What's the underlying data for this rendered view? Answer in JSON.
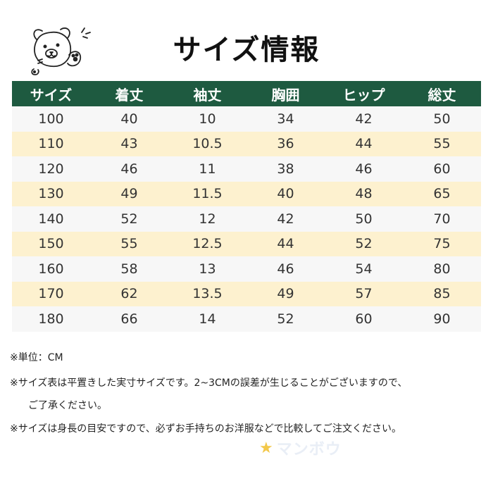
{
  "page": {
    "title": "サイズ情報"
  },
  "table": {
    "headers": [
      "サイズ",
      "着丈",
      "袖丈",
      "胸囲",
      "ヒップ",
      "総丈"
    ],
    "rows": [
      [
        "100",
        "40",
        "10",
        "34",
        "42",
        "50"
      ],
      [
        "110",
        "43",
        "10.5",
        "36",
        "44",
        "55"
      ],
      [
        "120",
        "46",
        "11",
        "38",
        "46",
        "60"
      ],
      [
        "130",
        "49",
        "11.5",
        "40",
        "48",
        "65"
      ],
      [
        "140",
        "52",
        "12",
        "42",
        "50",
        "70"
      ],
      [
        "150",
        "55",
        "12.5",
        "44",
        "52",
        "75"
      ],
      [
        "160",
        "58",
        "13",
        "46",
        "54",
        "80"
      ],
      [
        "170",
        "62",
        "13.5",
        "49",
        "57",
        "85"
      ],
      [
        "180",
        "66",
        "14",
        "52",
        "60",
        "90"
      ]
    ]
  },
  "notes": [
    "※単位：CM",
    "※サイズ表は平置きした実寸サイズです。2~3CMの誤差が生じることがございますので、",
    "ご了承ください。",
    "※サイズは身長の目安ですので、必ずお手持ちのお洋服などで比較してご注文ください。"
  ],
  "watermark": {
    "text": "マンボウ",
    "icon": "star-icon"
  },
  "colors": {
    "header_bg": "#1e5a40",
    "header_text": "#ffffff",
    "row_odd_bg": "#f7f7f7",
    "row_even_bg": "#fdf1cf",
    "watermark_star": "#f3c84a"
  },
  "decoration": {
    "icon": "bear-illustration-icon"
  }
}
